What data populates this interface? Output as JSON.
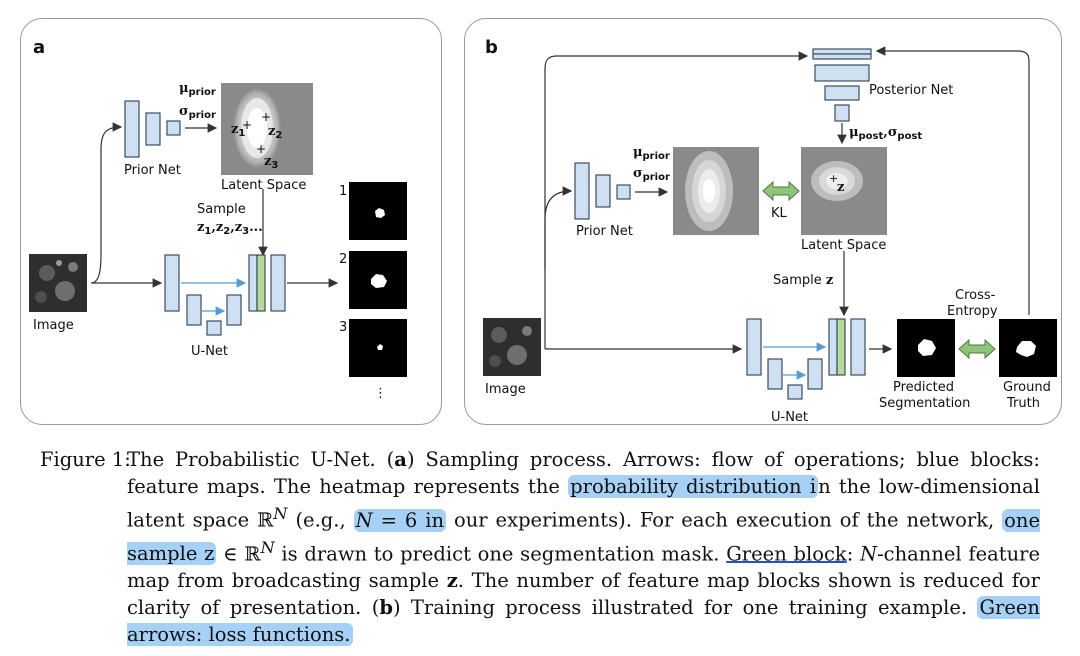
{
  "panel_a": {
    "letter": "a",
    "mu_label": "μ",
    "mu_sub": "prior",
    "sigma_label": "σ",
    "sigma_sub": "prior",
    "prior_net": "Prior Net",
    "latent_space": "Latent Space",
    "sample_label": "Sample",
    "sample_z": "z",
    "sample_z_subs": [
      "1",
      "2",
      "3"
    ],
    "sample_tail": "...",
    "image_label": "Image",
    "unet_label": "U-Net",
    "z_points": [
      {
        "name": "z",
        "sub": "1"
      },
      {
        "name": "z",
        "sub": "2"
      },
      {
        "name": "z",
        "sub": "3"
      }
    ],
    "outputs": [
      "1",
      "2",
      "3"
    ],
    "ellipsis": "⋮"
  },
  "panel_b": {
    "letter": "b",
    "posterior_net": "Posterior Net",
    "mu_post": "μ",
    "mu_post_sub": "post",
    "sigma_post": "σ",
    "sigma_post_sub": "post",
    "mu_prior": "μ",
    "mu_prior_sub": "prior",
    "sigma_prior": "σ",
    "sigma_prior_sub": "prior",
    "prior_net": "Prior Net",
    "kl": "KL",
    "latent_space": "Latent Space",
    "z": "z",
    "sample_z": "Sample",
    "cross_entropy_1": "Cross-",
    "cross_entropy_2": "Entropy",
    "image_label": "Image",
    "unet_label": "U-Net",
    "predicted_1": "Predicted",
    "predicted_2": "Segmentation",
    "ground_1": "Ground",
    "ground_2": "Truth"
  },
  "caption": {
    "lead": "Figure 1:",
    "t1": "The Probabilistic U-Net. (",
    "a": "a",
    "t2": ") Sampling process. Arrows: flow of operations; blue blocks: feature maps. The heatmap represents the ",
    "hl1": "probability distribution i",
    "t3": "n the low-dimensional latent space ℝ",
    "supN": "N",
    "t4": " (e.g., ",
    "hl2a": "N",
    "hl2b": " = 6 in",
    "t5": " our experiments). For each execution of the network, ",
    "hl3": "one sample z",
    "t6": " ∈ ℝ",
    "supN2": "N",
    "t7": " is drawn to predict one segmentation mask. ",
    "ul1": "Green block",
    "t8": ": ",
    "nchan": "N",
    "t9": "-channel feature map from broadcasting sample ",
    "zb": "z",
    "t10": ". The number of feature map blocks shown is reduced for clarity of presentation. (",
    "b": "b",
    "t11": ") Training process illustrated for one training example. ",
    "hl4": "Green arrows: loss functions."
  },
  "colors": {
    "block_fill": "#cfe0f3",
    "green_arrow": "#8fc47a",
    "highlight": "#a6d0f5",
    "latent_bg": "#8a8a8a"
  }
}
